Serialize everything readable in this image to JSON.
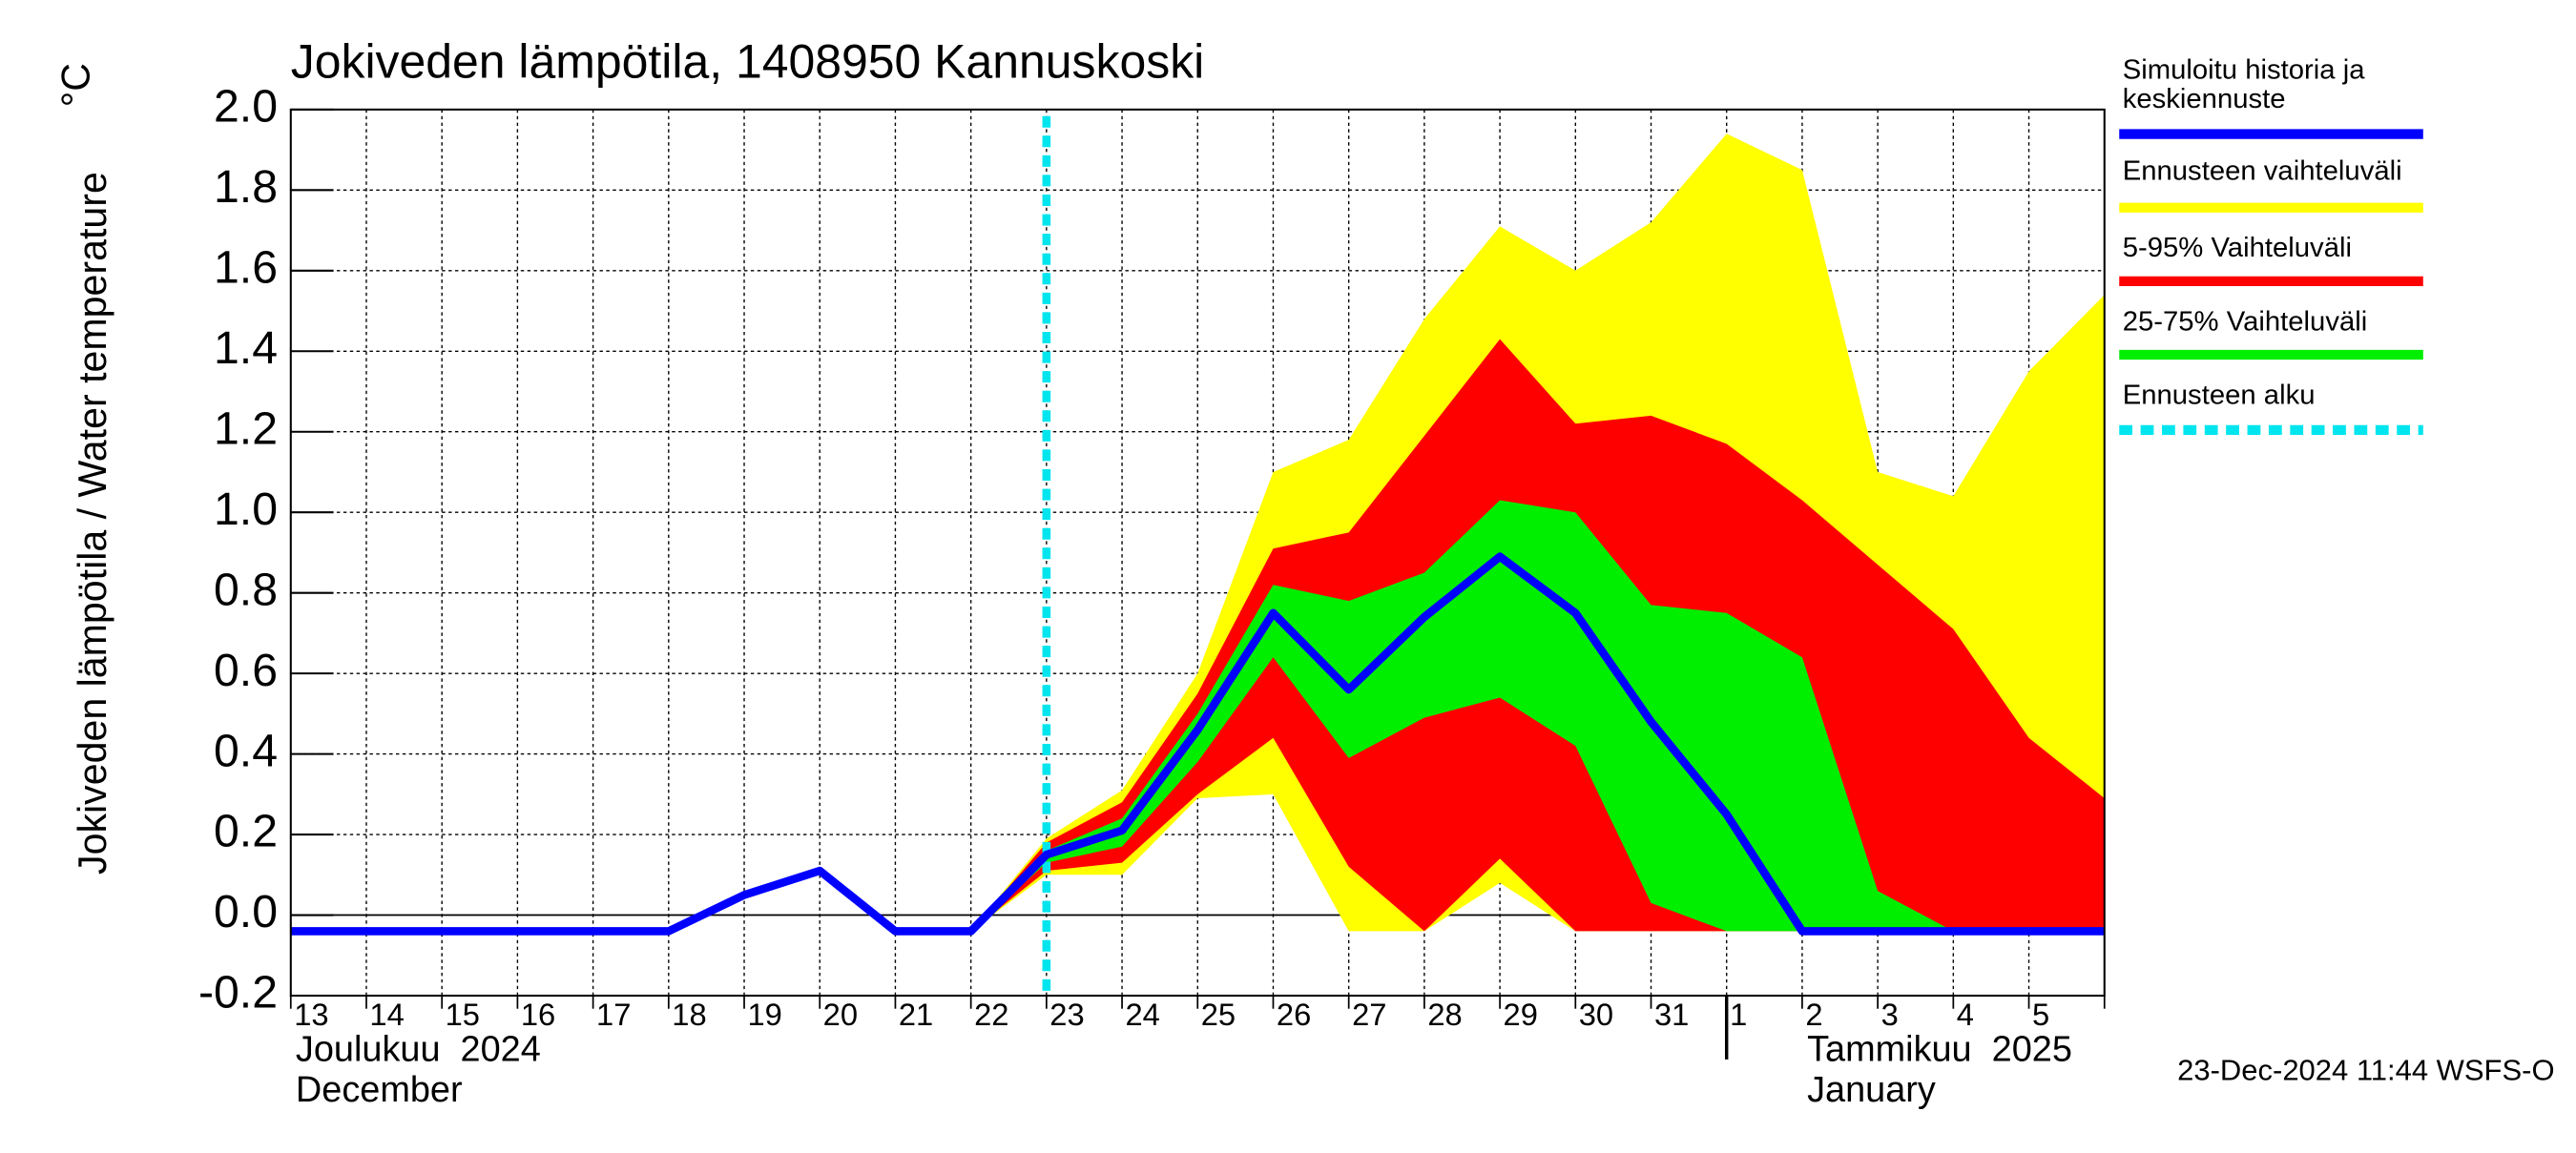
{
  "chart_data": {
    "type": "band-line",
    "title": "Jokiveden lämpötila, 1408950 Kannuskoski",
    "ylabel": "Jokiveden lämpötila / Water temperature",
    "yunit": "°C",
    "categories": [
      "13",
      "14",
      "15",
      "16",
      "17",
      "18",
      "19",
      "20",
      "21",
      "22",
      "23",
      "24",
      "25",
      "26",
      "27",
      "28",
      "29",
      "30",
      "31",
      "1",
      "2",
      "3",
      "4",
      "5",
      null
    ],
    "month_labels": [
      "Joulukuu  2024",
      "December",
      "Tammikuu  2025",
      "January"
    ],
    "footer": "23-Dec-2024 11:44 WSFS-O",
    "ylim": [
      -0.2,
      2.0
    ],
    "yticks": [
      -0.2,
      {
        "value": 0,
        "label": "0.0"
      },
      0.2,
      0.4,
      0.6,
      0.8,
      {
        "value": 1,
        "label": "1.0"
      },
      1.2,
      1.4,
      1.6,
      1.8,
      {
        "value": 2,
        "label": "2.0"
      }
    ],
    "grid": true,
    "forecast_start": {
      "name": "Ennusteen alku",
      "color": "#00e5ee",
      "x": "23"
    },
    "series": [
      {
        "name": "Simuloitu historia ja keskiennuste",
        "color": "#0000ff",
        "kind": "line",
        "values": [
          -0.04,
          -0.04,
          -0.04,
          -0.04,
          -0.04,
          -0.04,
          0.05,
          0.11,
          -0.04,
          -0.04,
          0.15,
          0.21,
          0.46,
          0.75,
          0.56,
          0.74,
          0.89,
          0.75,
          0.48,
          0.25,
          -0.04,
          -0.04,
          -0.04,
          -0.04,
          -0.04
        ]
      },
      {
        "name": "Ennusteen vaihteluväli",
        "color": "#ffff00",
        "kind": "band",
        "high": [
          null,
          null,
          null,
          null,
          null,
          null,
          null,
          null,
          null,
          -0.04,
          0.19,
          0.31,
          0.6,
          1.1,
          1.18,
          1.48,
          1.71,
          1.6,
          1.72,
          1.94,
          1.85,
          1.1,
          1.04,
          1.35,
          1.54
        ],
        "low": [
          null,
          null,
          null,
          null,
          null,
          null,
          null,
          null,
          null,
          -0.04,
          0.1,
          0.1,
          0.29,
          0.3,
          -0.04,
          -0.04,
          0.08,
          -0.04,
          -0.04,
          -0.04,
          -0.04,
          -0.04,
          -0.04,
          -0.04,
          -0.04
        ]
      },
      {
        "name": "5-95% Vaihteluväli",
        "color": "#ff0000",
        "kind": "band",
        "high": [
          null,
          null,
          null,
          null,
          null,
          null,
          null,
          null,
          null,
          -0.04,
          0.18,
          0.28,
          0.55,
          0.91,
          0.95,
          1.19,
          1.43,
          1.22,
          1.24,
          1.17,
          1.03,
          0.87,
          0.71,
          0.44,
          0.29
        ],
        "low": [
          null,
          null,
          null,
          null,
          null,
          null,
          null,
          null,
          null,
          -0.04,
          0.11,
          0.13,
          0.3,
          0.44,
          0.12,
          -0.04,
          0.14,
          -0.04,
          -0.04,
          -0.04,
          -0.04,
          -0.04,
          -0.04,
          -0.04,
          -0.04
        ]
      },
      {
        "name": "25-75% Vaihteluväli",
        "color": "#00ee00",
        "kind": "band",
        "high": [
          null,
          null,
          null,
          null,
          null,
          null,
          null,
          null,
          null,
          -0.04,
          0.16,
          0.24,
          0.5,
          0.82,
          0.78,
          0.85,
          1.03,
          1.0,
          0.77,
          0.75,
          0.64,
          0.06,
          -0.04,
          -0.04,
          -0.04
        ],
        "low": [
          null,
          null,
          null,
          null,
          null,
          null,
          null,
          null,
          null,
          -0.04,
          0.13,
          0.17,
          0.38,
          0.64,
          0.39,
          0.49,
          0.54,
          0.42,
          0.03,
          -0.04,
          -0.04,
          -0.04,
          -0.04,
          -0.04,
          -0.04
        ]
      }
    ]
  }
}
